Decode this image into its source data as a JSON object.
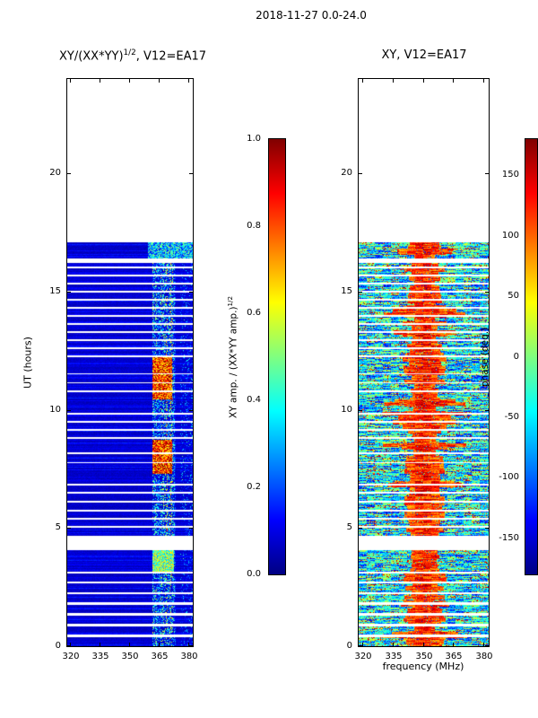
{
  "figure": {
    "suptitle": "2018-11-27 0.0-24.0",
    "background": "#ffffff"
  },
  "left_panel": {
    "title": {
      "prefix": "XY/(XX*YY)",
      "sup": "1/2",
      "suffix": ", V12=EA17"
    },
    "ylabel": "UT (hours)",
    "xticks": [
      "320",
      "335",
      "350",
      "365",
      "380"
    ],
    "yticks": [
      "0",
      "5",
      "10",
      "15",
      "20"
    ]
  },
  "left_colorbar": {
    "ticks": [
      "1.0",
      "0.8",
      "0.6",
      "0.4",
      "0.2",
      "0.0"
    ],
    "label": {
      "prefix": "XY amp. / (XX*YY amp.)",
      "sup": "1/2"
    }
  },
  "right_panel": {
    "title": "XY, V12=EA17",
    "xlabel": "frequency (MHz)",
    "xticks": [
      "320",
      "335",
      "350",
      "365",
      "380"
    ],
    "yticks": [
      "0",
      "5",
      "10",
      "15",
      "20"
    ]
  },
  "right_colorbar": {
    "ticks": [
      "150",
      "100",
      "50",
      "0",
      "-50",
      "-100",
      "-150"
    ],
    "label": "phase (deg.)"
  },
  "chart_data": [
    {
      "type": "heatmap",
      "panel": "left",
      "title": "XY/(XX*YY)^(1/2), V12=EA17",
      "xlabel": "frequency (MHz)",
      "ylabel": "UT (hours)",
      "xlim": [
        318,
        382
      ],
      "ylim": [
        0,
        24
      ],
      "xticks": [
        320,
        335,
        350,
        365,
        380
      ],
      "yticks": [
        0,
        5,
        10,
        15,
        20
      ],
      "colormap": "jet",
      "colormap_stops": [
        {
          "pos": 0,
          "color": "#000083"
        },
        {
          "pos": 0.125,
          "color": "#0000ff"
        },
        {
          "pos": 0.375,
          "color": "#00ffff"
        },
        {
          "pos": 0.625,
          "color": "#ffff00"
        },
        {
          "pos": 0.875,
          "color": "#ff0000"
        },
        {
          "pos": 1,
          "color": "#800000"
        }
      ],
      "value_range": [
        0,
        1
      ],
      "colorbar_label": "XY amp. / (XX*YY amp.)^(1/2)",
      "data_extent_ut": [
        0,
        17.08
      ],
      "background_value": 0.06,
      "rfi_band_freq": [
        361.5,
        373.5
      ],
      "sporadic_rfi_freq": [
        375.5,
        382
      ],
      "gaps_ut": [
        [
          0.38,
          0.49
        ],
        [
          0.84,
          0.95
        ],
        [
          1.29,
          1.41
        ],
        [
          1.75,
          1.86
        ],
        [
          2.2,
          2.28
        ],
        [
          2.66,
          2.73
        ],
        [
          3.08,
          3.15
        ],
        [
          4.06,
          4.67
        ],
        [
          5.01,
          5.09
        ],
        [
          5.35,
          5.43
        ],
        [
          5.7,
          5.77
        ],
        [
          6.08,
          6.15
        ],
        [
          6.46,
          6.53
        ],
        [
          6.8,
          6.87
        ],
        [
          7.75,
          7.8
        ],
        [
          8.14,
          8.19
        ],
        [
          8.77,
          8.85
        ],
        [
          9.11,
          9.19
        ],
        [
          9.46,
          9.53
        ],
        [
          9.8,
          9.87
        ],
        [
          10.76,
          10.81
        ],
        [
          11.11,
          11.16
        ],
        [
          11.49,
          11.54
        ],
        [
          12.23,
          12.31
        ],
        [
          12.57,
          12.65
        ],
        [
          12.91,
          12.99
        ],
        [
          13.25,
          13.33
        ],
        [
          13.59,
          13.67
        ],
        [
          13.94,
          14.01
        ],
        [
          14.28,
          14.35
        ],
        [
          14.62,
          14.69
        ],
        [
          14.96,
          15.04
        ],
        [
          15.3,
          15.38
        ],
        [
          15.64,
          15.72
        ],
        [
          15.99,
          16.06
        ],
        [
          16.21,
          16.41
        ]
      ],
      "features": [
        {
          "ut": [
            3.15,
            4.06
          ],
          "freq": [
            361.5,
            372.5
          ],
          "value": 0.5,
          "desc": "yellow-green RFI block"
        },
        {
          "ut": [
            7.29,
            8.74
          ],
          "freq": [
            361.5,
            371.5
          ],
          "value": 0.82,
          "desc": "strong red RFI blocks"
        },
        {
          "ut": [
            10.44,
            12.23
          ],
          "freq": [
            361.5,
            371.5
          ],
          "value": 0.82,
          "desc": "strong red RFI blocks"
        },
        {
          "ut": [
            16.41,
            17.08
          ],
          "freq": [
            359,
            382
          ],
          "value": 0.33,
          "desc": "cyan band across upper channels"
        }
      ]
    },
    {
      "type": "heatmap",
      "panel": "right",
      "title": "XY, V12=EA17",
      "xlabel": "frequency (MHz)",
      "ylabel": "UT (hours)",
      "xlim": [
        318,
        382
      ],
      "ylim": [
        0,
        24
      ],
      "xticks": [
        320,
        335,
        350,
        365,
        380
      ],
      "yticks": [
        0,
        5,
        10,
        15,
        20
      ],
      "colormap": "jet",
      "colormap_stops": [
        {
          "pos": 0,
          "color": "#000083"
        },
        {
          "pos": 0.125,
          "color": "#0000ff"
        },
        {
          "pos": 0.375,
          "color": "#00ffff"
        },
        {
          "pos": 0.625,
          "color": "#ffff00"
        },
        {
          "pos": 0.875,
          "color": "#ff0000"
        },
        {
          "pos": 1,
          "color": "#800000"
        }
      ],
      "value_range": [
        -180,
        180
      ],
      "colorbar_label": "phase (deg.)",
      "data_extent_ut": [
        0,
        17.08
      ],
      "gaps_ut": [
        [
          0.38,
          0.49
        ],
        [
          0.84,
          0.95
        ],
        [
          1.29,
          1.41
        ],
        [
          1.75,
          1.86
        ],
        [
          2.2,
          2.28
        ],
        [
          2.66,
          2.73
        ],
        [
          3.08,
          3.15
        ],
        [
          4.06,
          4.67
        ],
        [
          5.01,
          5.09
        ],
        [
          5.35,
          5.43
        ],
        [
          5.7,
          5.77
        ],
        [
          6.08,
          6.15
        ],
        [
          6.46,
          6.53
        ],
        [
          6.8,
          6.87
        ],
        [
          7.75,
          7.8
        ],
        [
          8.14,
          8.19
        ],
        [
          8.77,
          8.85
        ],
        [
          9.11,
          9.19
        ],
        [
          9.46,
          9.53
        ],
        [
          9.8,
          9.87
        ],
        [
          10.76,
          10.81
        ],
        [
          11.11,
          11.16
        ],
        [
          11.49,
          11.54
        ],
        [
          12.23,
          12.31
        ],
        [
          12.57,
          12.65
        ],
        [
          12.91,
          12.99
        ],
        [
          13.25,
          13.33
        ],
        [
          13.59,
          13.67
        ],
        [
          13.94,
          14.01
        ],
        [
          14.28,
          14.35
        ],
        [
          14.62,
          14.69
        ],
        [
          14.96,
          15.04
        ],
        [
          15.3,
          15.38
        ],
        [
          15.64,
          15.72
        ],
        [
          15.99,
          16.06
        ],
        [
          16.21,
          16.41
        ]
      ],
      "warm_band": {
        "freq_center": 350.5,
        "halfwidth": [
          5,
          11
        ],
        "phase_range": [
          45,
          180
        ],
        "desc": "coherent warm phase band around 343-358 MHz"
      },
      "outside_phase_range": [
        -172,
        80
      ],
      "texture": "speckled phase noise with horizontal streaks"
    }
  ]
}
